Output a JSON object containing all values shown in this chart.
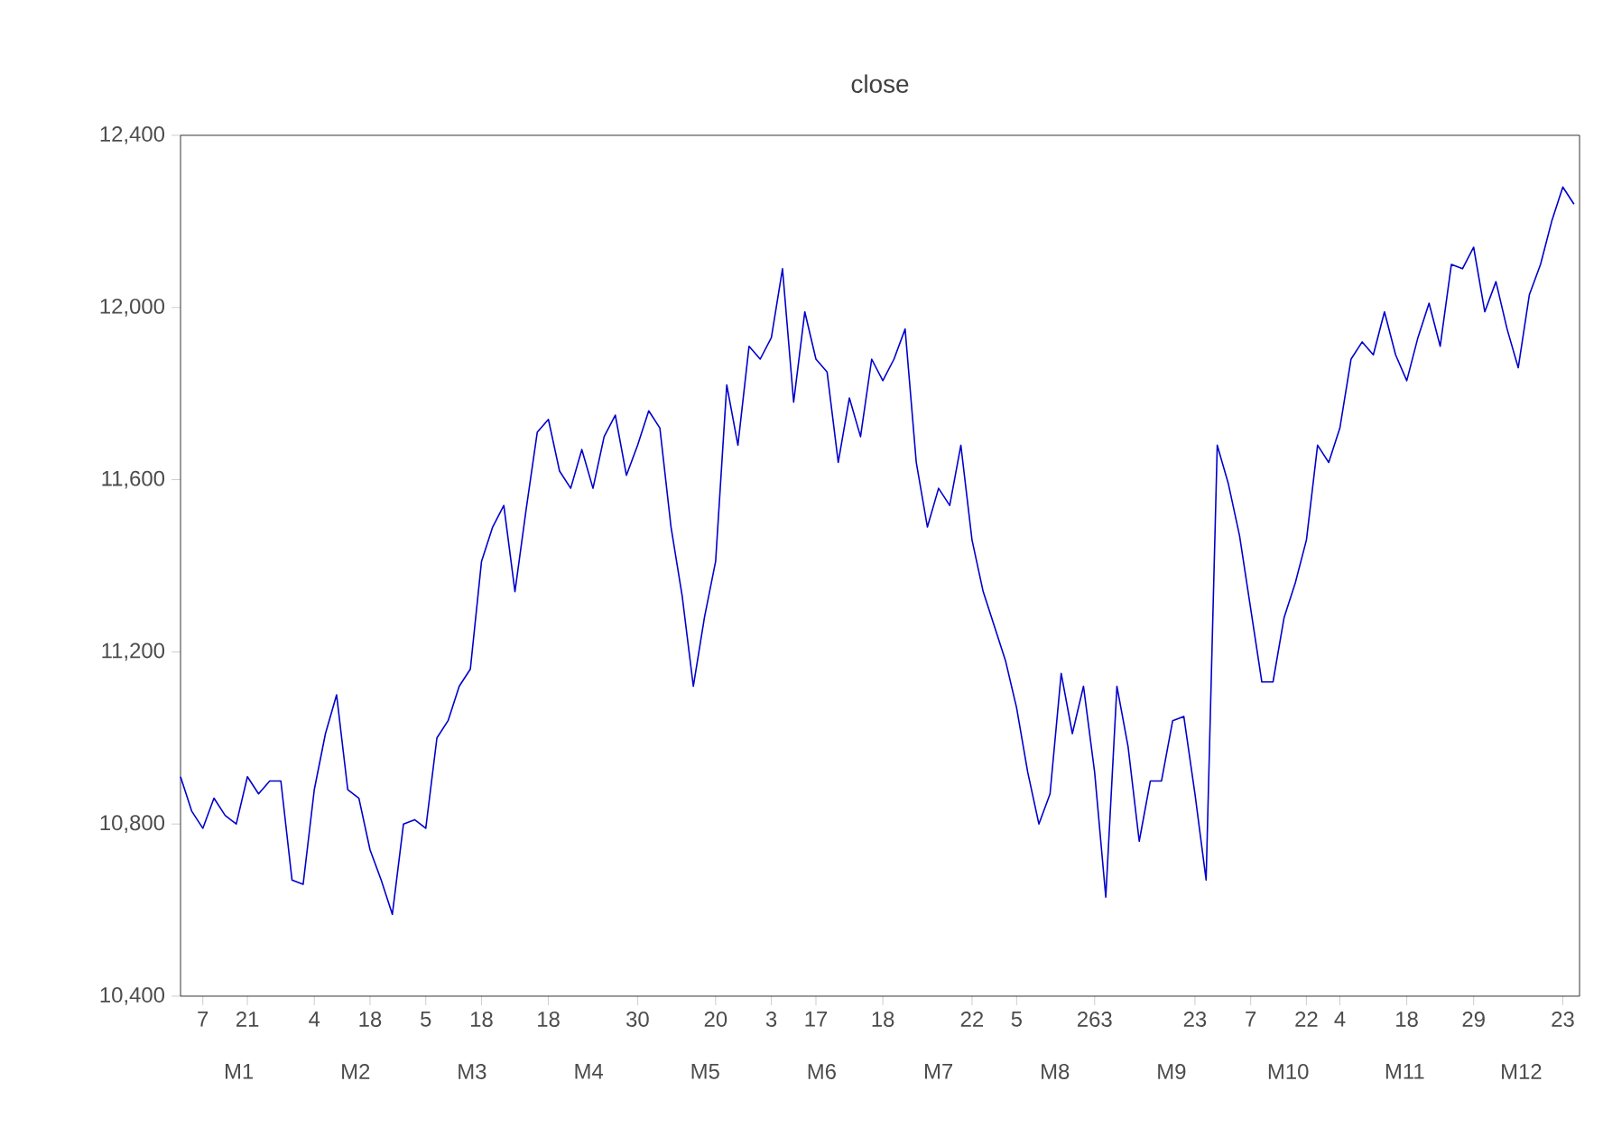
{
  "chart_data": {
    "type": "line",
    "title": "close",
    "categories": [
      null,
      null,
      "7",
      null,
      null,
      null,
      "21",
      null,
      null,
      null,
      null,
      null,
      "4",
      null,
      null,
      null,
      null,
      "18",
      null,
      null,
      null,
      null,
      "5",
      null,
      null,
      null,
      null,
      "18",
      null,
      null,
      null,
      null,
      null,
      "18",
      null,
      null,
      null,
      null,
      null,
      null,
      null,
      "30",
      null,
      null,
      null,
      null,
      null,
      null,
      "20",
      null,
      null,
      null,
      null,
      "3",
      null,
      null,
      null,
      "17",
      null,
      null,
      null,
      null,
      null,
      "18",
      null,
      null,
      null,
      null,
      null,
      null,
      null,
      "22",
      null,
      null,
      null,
      "5",
      null,
      null,
      null,
      null,
      null,
      null,
      "263",
      null,
      null,
      null,
      null,
      null,
      null,
      null,
      null,
      "23",
      null,
      null,
      null,
      null,
      "7",
      null,
      null,
      null,
      null,
      "22",
      null,
      null,
      "4",
      null,
      null,
      null,
      null,
      null,
      "18",
      null,
      null,
      null,
      null,
      null,
      "29",
      null,
      null,
      null,
      null,
      null,
      null,
      null,
      "23",
      null
    ],
    "series": [
      {
        "color": "#0000cc",
        "values": [
          10910,
          10830,
          10790,
          10860,
          10820,
          10800,
          10910,
          10870,
          10900,
          10900,
          10670,
          10660,
          10880,
          11010,
          11100,
          10880,
          10860,
          10740,
          10670,
          10590,
          10800,
          10810,
          10790,
          11000,
          11040,
          11120,
          11160,
          11410,
          11490,
          11540,
          11340,
          11530,
          11710,
          11740,
          11620,
          11580,
          11670,
          11580,
          11700,
          11750,
          11610,
          11680,
          11760,
          11720,
          11490,
          11330,
          11120,
          11280,
          11410,
          11820,
          11680,
          11910,
          11880,
          11930,
          12090,
          11780,
          11990,
          11880,
          11850,
          11640,
          11790,
          11700,
          11880,
          11830,
          11880,
          11950,
          11640,
          11490,
          11580,
          11540,
          11680,
          11460,
          11340,
          11260,
          11180,
          11070,
          10920,
          10800,
          10870,
          11150,
          11010,
          11120,
          10920,
          10630,
          11120,
          10980,
          10760,
          10900,
          10900,
          11040,
          11050,
          10870,
          10670,
          11680,
          11590,
          11470,
          11300,
          11130,
          11130,
          11280,
          11360,
          11460,
          11680,
          11640,
          11720,
          11880,
          11920,
          11890,
          11990,
          11890,
          11830,
          11930,
          12010,
          11910,
          12100,
          12090,
          12140,
          11990,
          12060,
          11950,
          11860,
          12030,
          12100,
          12200,
          12280,
          12240
        ]
      }
    ],
    "ylim": [
      10400,
      12400
    ],
    "yticks": [
      {
        "value": 10400,
        "label": "10,400"
      },
      {
        "value": 10800,
        "label": "10,800"
      },
      {
        "value": 11200,
        "label": "11,200"
      },
      {
        "value": 11600,
        "label": "11,600"
      },
      {
        "value": 12000,
        "label": "12,000"
      },
      {
        "value": 12400,
        "label": "12,400"
      }
    ],
    "annotations": [
      "M1",
      "M2",
      "M3",
      "M4",
      "M5",
      "M6",
      "M7",
      "M8",
      "M9",
      "M10",
      "M11",
      "M12"
    ],
    "marker": "none",
    "line_style": "solid",
    "grid": false
  }
}
